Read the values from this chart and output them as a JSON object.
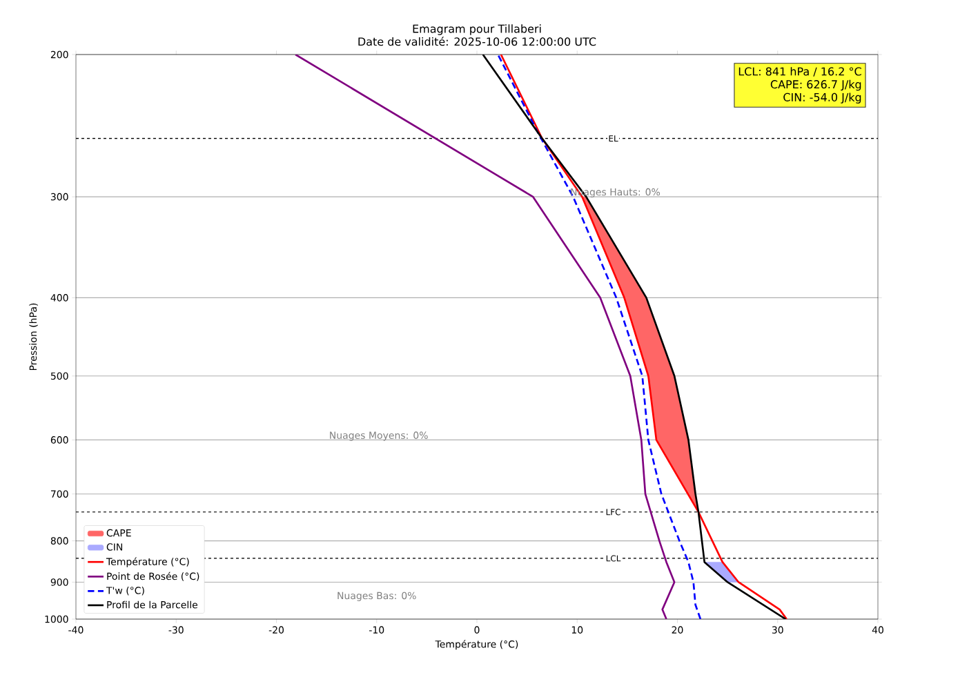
{
  "chart_data": {
    "type": "line",
    "title": "Emagram pour Tillaberi",
    "subtitle": "Date de validité: 2025-10-06 12:00:00 UTC",
    "xlabel": "Température (°C)",
    "ylabel": "Pression (hPa)",
    "xlim": [
      -40,
      40
    ],
    "xticks": [
      -40,
      -30,
      -20,
      -10,
      0,
      10,
      20,
      30,
      40
    ],
    "ylim": [
      1000,
      200
    ],
    "yticks": [
      200,
      300,
      400,
      500,
      600,
      700,
      800,
      900,
      1000
    ],
    "log": "y",
    "grid": "y",
    "legend": "bottom left",
    "marker": "none",
    "series": [
      {
        "name": "CAPE",
        "type": "area",
        "color": "#ff6666",
        "x": [
          22.1,
          21.8,
          21.1,
          19.7,
          16.9,
          10.9,
          10.5,
          14.7,
          17.1,
          17.9,
          22.1
        ],
        "values": [
          737,
          700,
          600,
          500,
          400,
          300,
          300,
          400,
          500,
          600,
          737
        ]
      },
      {
        "name": "CIN",
        "type": "area",
        "color": "#aaaaff",
        "x": [
          22.7,
          24.5,
          26.1,
          25.0
        ],
        "values": [
          850,
          850,
          900,
          900
        ]
      },
      {
        "name": "Température (°C)",
        "color": "#ff0000",
        "line_style": "solid",
        "x": [
          30.9,
          30.2,
          26.1,
          24.5,
          22.1,
          17.9,
          17.1,
          14.7,
          10.5,
          6.5,
          2.4
        ],
        "values": [
          1000,
          973,
          900,
          850,
          737,
          600,
          500,
          400,
          300,
          254,
          200
        ]
      },
      {
        "name": "Point de Rosée (°C)",
        "color": "#800080",
        "line_style": "solid",
        "x": [
          18.9,
          18.5,
          19.7,
          18.9,
          18.2,
          16.8,
          16.4,
          15.3,
          12.3,
          5.6,
          -18.1
        ],
        "values": [
          1000,
          973,
          900,
          850,
          800,
          700,
          600,
          500,
          400,
          300,
          200
        ]
      },
      {
        "name": "T'w (°C)",
        "color": "#0000ff",
        "line_style": "dashed",
        "x": [
          22.3,
          21.8,
          21.6,
          21.1,
          20.2,
          18.4,
          17.1,
          16.5,
          13.9,
          9.6,
          6.1,
          2.1
        ],
        "values": [
          1000,
          960,
          900,
          850,
          800,
          700,
          600,
          500,
          400,
          300,
          250,
          200
        ]
      },
      {
        "name": "Profil de la Parcelle",
        "color": "#000000",
        "line_style": "solid",
        "x": [
          30.8,
          25.0,
          22.7,
          22.1,
          21.8,
          21.1,
          19.7,
          16.9,
          10.9,
          6.5,
          0.6
        ],
        "values": [
          1000,
          900,
          850,
          737,
          700,
          600,
          500,
          400,
          300,
          254,
          200
        ]
      }
    ],
    "ref_lines": [
      {
        "axis": "y",
        "value": 254,
        "label": "EL",
        "color": "#000000",
        "line_style": "dashed"
      },
      {
        "axis": "y",
        "value": 737,
        "label": "LFC",
        "color": "#000000",
        "line_style": "dashed"
      },
      {
        "axis": "y",
        "value": 841,
        "label": "LCL",
        "color": "#000000",
        "line_style": "dashed"
      }
    ],
    "annotations": [
      "Nuages Hauts: 0%",
      "Nuages Moyens: 0%",
      "Nuages Bas: 0%",
      "LCL: 841 hPa / 16.2 °C",
      "CAPE: 626.7 J/kg",
      "CIN: -54.0 J/kg"
    ]
  }
}
